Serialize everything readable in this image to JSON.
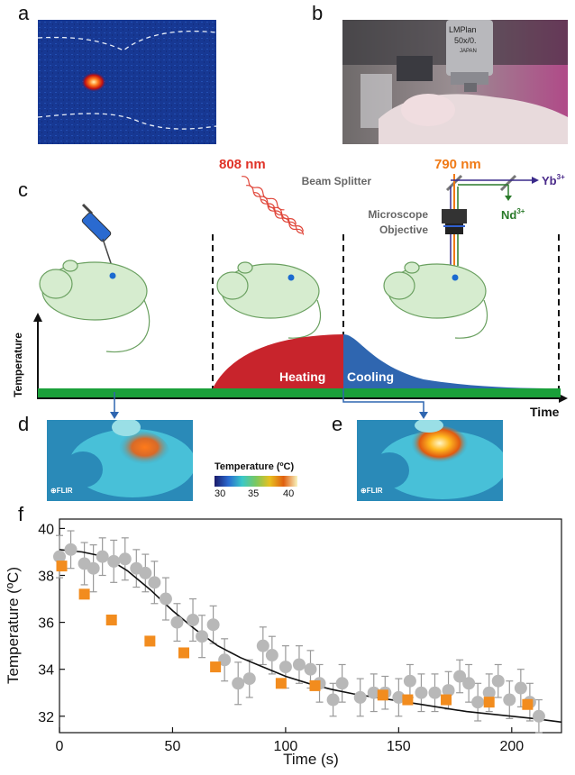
{
  "panels": {
    "a": "a",
    "b": "b",
    "c": "c",
    "d": "d",
    "e": "e",
    "f": "f"
  },
  "panel_b": {
    "objective_text_1": "LMPlan",
    "objective_text_2": "50x/0.",
    "objective_text_3": "JAPAN"
  },
  "panel_c": {
    "laser_808": "808 nm",
    "laser_790": "790 nm",
    "beam_splitter": "Beam Splitter",
    "yb": "Yb",
    "yb_sup": "3+",
    "nd": "Nd",
    "nd_sup": "3+",
    "objective_1": "Microscope",
    "objective_2": "Objective",
    "y_axis": "Temperature",
    "x_axis": "Time",
    "heating": "Heating",
    "cooling": "Cooling"
  },
  "panel_de": {
    "flir_d": "FLIR",
    "flir_e": "FLIR",
    "colorbar_title": "Temperature (ºC)",
    "ticks": [
      "30",
      "35",
      "40"
    ]
  },
  "chart_data": {
    "type": "scatter",
    "title": "",
    "xlabel": "Time (s)",
    "ylabel": "Temperature (ºC)",
    "xlim": [
      0,
      222
    ],
    "ylim": [
      31.3,
      40.4
    ],
    "xticks": [
      0,
      50,
      100,
      150,
      200
    ],
    "yticks": [
      32,
      34,
      36,
      38,
      40
    ],
    "series": [
      {
        "marker": "circle",
        "color": "#b8b8b8",
        "x": [
          0,
          5,
          11,
          15,
          19,
          24,
          29,
          34,
          38,
          42,
          47,
          52,
          59,
          63,
          68,
          73,
          79,
          84,
          90,
          94,
          100,
          106,
          111,
          115,
          121,
          125,
          133,
          139,
          144,
          150,
          155,
          160,
          166,
          172,
          177,
          181,
          185,
          190,
          194,
          199,
          204,
          208,
          212
        ],
        "y": [
          38.8,
          39.1,
          38.5,
          38.3,
          38.8,
          38.6,
          38.7,
          38.3,
          38.1,
          37.7,
          37.0,
          36.0,
          36.1,
          35.4,
          35.9,
          34.4,
          33.4,
          33.6,
          35.0,
          34.6,
          34.1,
          34.2,
          34.0,
          33.4,
          32.7,
          33.4,
          32.8,
          33.0,
          33.0,
          32.8,
          33.5,
          33.0,
          33.0,
          33.1,
          33.7,
          33.4,
          32.6,
          33.0,
          33.5,
          32.7,
          33.2,
          32.6,
          32.0
        ],
        "err": [
          0.9,
          0.8,
          0.9,
          1.0,
          0.8,
          0.9,
          0.9,
          0.8,
          0.8,
          0.9,
          0.9,
          0.8,
          0.9,
          0.9,
          0.8,
          0.9,
          0.9,
          0.8,
          0.8,
          0.8,
          0.9,
          0.8,
          0.8,
          0.8,
          0.7,
          0.8,
          0.8,
          0.8,
          0.7,
          0.8,
          0.7,
          0.8,
          0.8,
          0.8,
          0.7,
          0.8,
          0.8,
          0.8,
          0.7,
          0.8,
          0.8,
          0.8,
          0.7
        ]
      },
      {
        "marker": "square",
        "color": "#f28c1e",
        "x": [
          1,
          11,
          23,
          40,
          55,
          69,
          98,
          113,
          143,
          154,
          171,
          190,
          207
        ],
        "y": [
          38.4,
          37.2,
          36.1,
          35.2,
          34.7,
          34.1,
          33.4,
          33.3,
          32.9,
          32.7,
          32.7,
          32.6,
          32.5
        ]
      },
      {
        "marker": "line",
        "color": "#111111",
        "x": [
          0,
          10,
          20,
          30,
          40,
          50,
          60,
          70,
          80,
          90,
          100,
          110,
          120,
          130,
          140,
          150,
          160,
          170,
          180,
          190,
          200,
          210,
          222
        ],
        "y": [
          39.1,
          39.0,
          38.8,
          38.2,
          37.4,
          36.5,
          35.7,
          35.0,
          34.5,
          34.1,
          33.7,
          33.4,
          33.15,
          32.95,
          32.8,
          32.65,
          32.5,
          32.35,
          32.2,
          32.1,
          32.0,
          31.9,
          31.75
        ]
      }
    ]
  }
}
